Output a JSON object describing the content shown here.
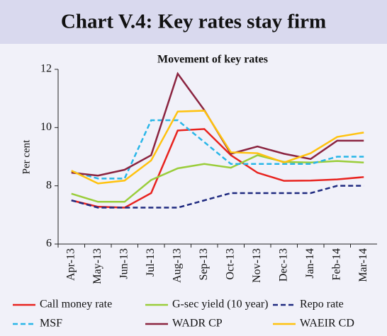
{
  "chart_data": {
    "type": "line",
    "title": "Chart V.4: Key rates stay firm",
    "subtitle": "Movement of key rates",
    "y_label": "Per cent",
    "categories": [
      "Apr-13",
      "May-13",
      "Jun-13",
      "Jul-13",
      "Aug-13",
      "Sep-13",
      "Oct-13",
      "Nov-13",
      "Dec-13",
      "Jan-14",
      "Feb-14",
      "Mar-14"
    ],
    "series": [
      {
        "name": "Call money rate",
        "color": "#e8231f",
        "dashed": false,
        "values": [
          7.5,
          7.28,
          7.25,
          7.75,
          9.9,
          9.95,
          9.05,
          8.45,
          8.17,
          8.18,
          8.22,
          8.3
        ]
      },
      {
        "name": "G-sec yield (10 year)",
        "color": "#9acd3a",
        "dashed": false,
        "values": [
          7.73,
          7.45,
          7.45,
          8.2,
          8.6,
          8.75,
          8.62,
          9.05,
          8.82,
          8.8,
          8.85,
          8.8
        ]
      },
      {
        "name": "Repo rate",
        "color": "#1f2a80",
        "dashed": true,
        "values": [
          7.5,
          7.25,
          7.25,
          7.25,
          7.25,
          7.5,
          7.75,
          7.75,
          7.75,
          7.75,
          8.0,
          8.0
        ]
      },
      {
        "name": "MSF",
        "color": "#29b6e8",
        "dashed": true,
        "values": [
          8.5,
          8.25,
          8.25,
          10.25,
          10.25,
          9.5,
          8.75,
          8.75,
          8.75,
          8.75,
          9.0,
          9.0
        ]
      },
      {
        "name": "WADR CP",
        "color": "#8b2440",
        "dashed": false,
        "values": [
          8.45,
          8.35,
          8.55,
          9.05,
          11.85,
          10.6,
          9.1,
          9.35,
          9.1,
          8.92,
          9.55,
          9.55
        ]
      },
      {
        "name": "WAEIR CD",
        "color": "#ffc20e",
        "dashed": false,
        "values": [
          8.52,
          8.08,
          8.18,
          8.87,
          10.55,
          10.58,
          9.15,
          9.12,
          8.8,
          9.12,
          9.68,
          9.83
        ]
      }
    ],
    "ylim": [
      6,
      12
    ],
    "yticks": [
      6,
      8,
      10,
      12
    ],
    "grid": false
  }
}
